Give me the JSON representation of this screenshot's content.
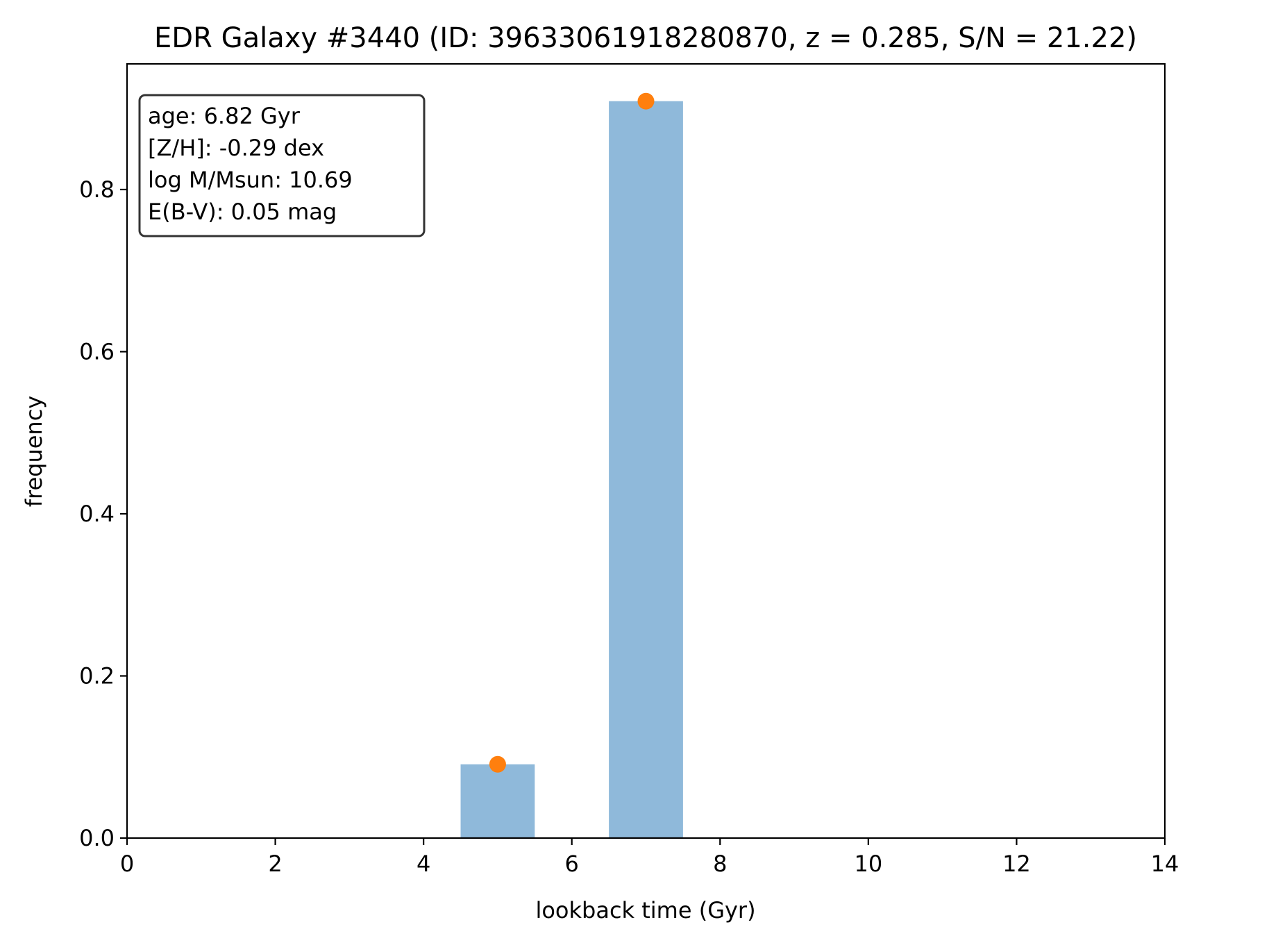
{
  "chart_data": {
    "type": "bar",
    "title": "EDR Galaxy #3440 (ID: 39633061918280870, z = 0.285, S/N = 21.22)",
    "xlabel": "lookback time (Gyr)",
    "ylabel": "frequency",
    "xlim": [
      0,
      14
    ],
    "ylim": [
      0,
      0.955
    ],
    "x_ticks": [
      "0",
      "2",
      "4",
      "6",
      "8",
      "10",
      "12",
      "14"
    ],
    "y_ticks": [
      "0.0",
      "0.2",
      "0.4",
      "0.6",
      "0.8"
    ],
    "grid": false,
    "legend": "none",
    "bin_width": 1.0,
    "series": [
      {
        "x": [
          5,
          7
        ],
        "values": [
          0.091,
          0.909
        ],
        "color": "#8fb9da"
      },
      {
        "type": "scatter",
        "x": [
          5,
          7
        ],
        "values": [
          0.091,
          0.909
        ],
        "color": "#ff7f0e"
      }
    ],
    "annotation": {
      "placement": "top-left",
      "lines": [
        "age: 6.82 Gyr",
        "[Z/H]: -0.29 dex",
        "log M/Msun: 10.69",
        "E(B-V): 0.05 mag"
      ]
    }
  }
}
